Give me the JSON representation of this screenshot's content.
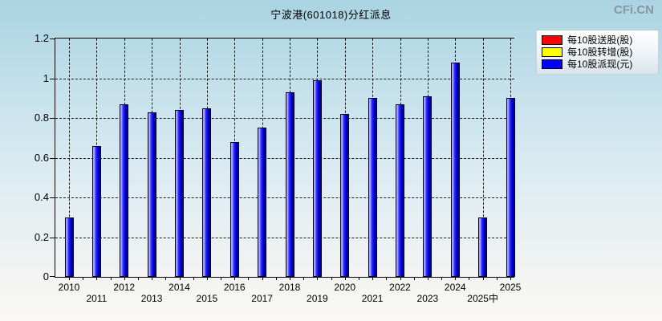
{
  "title": "宁波港(601018)分红派息",
  "watermark": "CFi.CN",
  "legend": [
    {
      "label": "每10股送股(股)",
      "color": "#ff0000"
    },
    {
      "label": "每10股转增(股)",
      "color": "#ffff00"
    },
    {
      "label": "每10股派现(元)",
      "color": "#0000ff"
    }
  ],
  "chart_data": {
    "type": "bar",
    "title": "宁波港(601018)分红派息",
    "categories": [
      "2010",
      "2011",
      "2012",
      "2013",
      "2014",
      "2015",
      "2016",
      "2017",
      "2018",
      "2019",
      "2020",
      "2021",
      "2022",
      "2023",
      "2024",
      "2025中",
      "2025"
    ],
    "series": [
      {
        "name": "每10股送股(股)",
        "color": "#ff0000",
        "values": [
          0,
          0,
          0,
          0,
          0,
          0,
          0,
          0,
          0,
          0,
          0,
          0,
          0,
          0,
          0,
          0,
          0
        ]
      },
      {
        "name": "每10股转增(股)",
        "color": "#ffff00",
        "values": [
          0,
          0,
          0,
          0,
          0,
          0,
          0,
          0,
          0,
          0,
          0,
          0,
          0,
          0,
          0,
          0,
          0
        ]
      },
      {
        "name": "每10股派现(元)",
        "color": "#0000ff",
        "values": [
          0.3,
          0.66,
          0.87,
          0.83,
          0.84,
          0.85,
          0.68,
          0.75,
          0.93,
          0.99,
          0.82,
          0.9,
          0.87,
          0.91,
          1.08,
          0.3,
          0.9
        ]
      }
    ],
    "xlabel": "",
    "ylabel": "",
    "ylim": [
      0,
      1.2
    ],
    "ytick_labels": [
      "0",
      "0.2",
      "0.4",
      "0.6",
      "0.8",
      "1",
      "1.2"
    ],
    "ytick_values": [
      0,
      0.2,
      0.4,
      0.6,
      0.8,
      1,
      1.2
    ],
    "grid": true,
    "legend_position": "top-right"
  }
}
